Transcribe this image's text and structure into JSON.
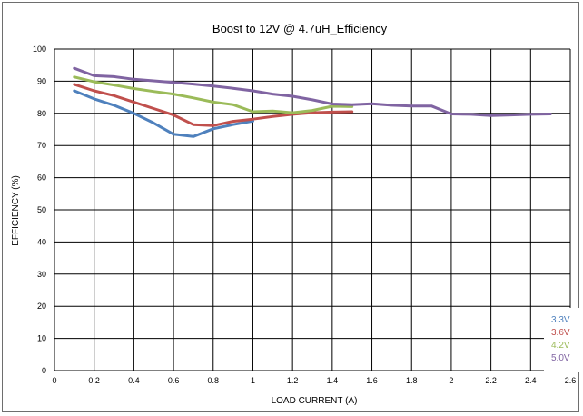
{
  "chart_data": {
    "type": "line",
    "title": "Boost to 12V @ 4.7uH_Efficiency",
    "xlabel": "LOAD CURRENT (A)",
    "ylabel": "EFFICIENCY (%)",
    "xlim": [
      0,
      2.6
    ],
    "ylim": [
      0,
      100
    ],
    "xticks": [
      0,
      0.2,
      0.4,
      0.6,
      0.8,
      1,
      1.2,
      1.4,
      1.6,
      1.8,
      2,
      2.2,
      2.4,
      2.6
    ],
    "xtick_labels": [
      "0",
      "0.2",
      "0.4",
      "0.6",
      "0.8",
      "1",
      "1.2",
      "1.4",
      "1.6",
      "1.8",
      "2",
      "2.2",
      "2.4",
      "2.6"
    ],
    "yticks": [
      0,
      10,
      20,
      30,
      40,
      50,
      60,
      70,
      80,
      90,
      100
    ],
    "ytick_labels": [
      "0",
      "10",
      "20",
      "30",
      "40",
      "50",
      "60",
      "70",
      "80",
      "90",
      "100"
    ],
    "grid": true,
    "legend_position": "bottom-right",
    "series": [
      {
        "name": "3.3V",
        "color": "#4f81bd",
        "x": [
          0.1,
          0.2,
          0.3,
          0.4,
          0.5,
          0.6,
          0.7,
          0.8,
          0.9,
          1.0
        ],
        "y": [
          87,
          84.5,
          82.5,
          80,
          77,
          73.5,
          72.8,
          75.2,
          76.5,
          77.6
        ]
      },
      {
        "name": "3.6V",
        "color": "#c0504d",
        "x": [
          0.1,
          0.2,
          0.3,
          0.4,
          0.5,
          0.6,
          0.7,
          0.8,
          0.9,
          1.0,
          1.1,
          1.2,
          1.3,
          1.4,
          1.5
        ],
        "y": [
          89,
          87,
          85.5,
          83.5,
          81.5,
          79.5,
          76.5,
          76.2,
          77.5,
          78.2,
          79,
          79.7,
          80.2,
          80.4,
          80.5
        ]
      },
      {
        "name": "4.2V",
        "color": "#9bbb59",
        "x": [
          0.1,
          0.2,
          0.3,
          0.4,
          0.5,
          0.6,
          0.7,
          0.8,
          0.9,
          1.0,
          1.1,
          1.2,
          1.3,
          1.4,
          1.5
        ],
        "y": [
          91.3,
          89.8,
          88.8,
          87.7,
          86.8,
          86,
          84.8,
          83.5,
          82.7,
          80.5,
          80.7,
          80.2,
          80.9,
          82.2,
          82.1
        ]
      },
      {
        "name": "5.0V",
        "color": "#8064a2",
        "x": [
          0.1,
          0.2,
          0.3,
          0.4,
          0.5,
          0.6,
          0.7,
          0.8,
          0.9,
          1.0,
          1.1,
          1.2,
          1.3,
          1.4,
          1.5,
          1.6,
          1.7,
          1.8,
          1.9,
          2.0,
          2.1,
          2.2,
          2.3,
          2.4,
          2.5
        ],
        "y": [
          94,
          91.7,
          91.4,
          90.6,
          90.1,
          89.6,
          89.1,
          88.5,
          87.8,
          87,
          86,
          85.3,
          84.2,
          82.9,
          82.7,
          83,
          82.5,
          82.3,
          82.3,
          79.8,
          79.7,
          79.3,
          79.5,
          79.7,
          79.8
        ]
      }
    ]
  }
}
